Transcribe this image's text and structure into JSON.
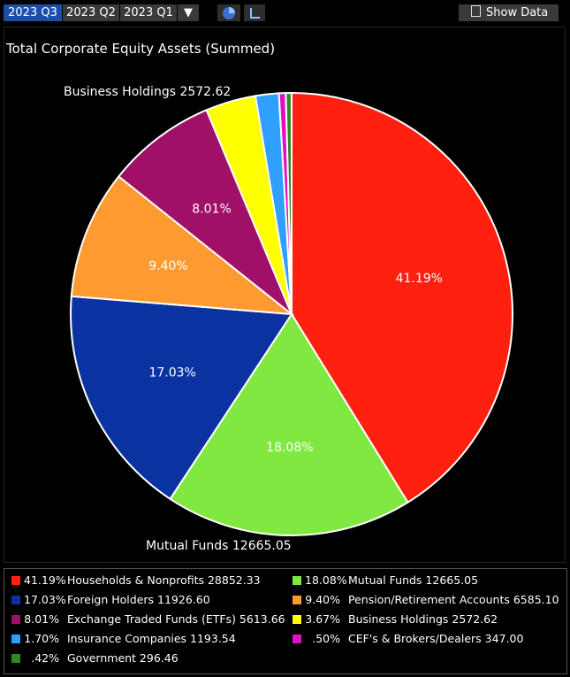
{
  "toolbar": {
    "tabs": [
      "2023 Q3",
      "2023 Q2",
      "2023 Q1"
    ],
    "dropdown_glyph": "▼",
    "show_data_label": "Show Data",
    "pie_icon": "pie-chart-icon",
    "axis_icon": "axis-chart-icon"
  },
  "chart_data": {
    "type": "pie",
    "title": "Total Corporate Equity Assets (Summed)",
    "slices": [
      {
        "label": "Households & Nonprofits",
        "value": 28852.33,
        "percent": 41.19,
        "pct_text": "41.19%",
        "color": "#ff2010"
      },
      {
        "label": "Mutual Funds",
        "value": 12665.05,
        "percent": 18.08,
        "pct_text": "18.08%",
        "color": "#80e840"
      },
      {
        "label": "Foreign Holders",
        "value": 11926.6,
        "percent": 17.03,
        "pct_text": "17.03%",
        "color": "#0a32a0"
      },
      {
        "label": "Pension/Retirement Accounts",
        "value": 6585.1,
        "percent": 9.4,
        "pct_text": "9.40%",
        "color": "#ff9a30"
      },
      {
        "label": "Exchange Traded Funds (ETFs)",
        "value": 5613.66,
        "percent": 8.01,
        "pct_text": "8.01%",
        "color": "#a01068"
      },
      {
        "label": "Business Holdings",
        "value": 2572.62,
        "percent": 3.67,
        "pct_text": "3.67%",
        "color": "#ffff00"
      },
      {
        "label": "Insurance Companies",
        "value": 1193.54,
        "percent": 1.7,
        "pct_text": "1.70%",
        "color": "#30a0ff"
      },
      {
        "label": "CEF's & Brokers/Dealers",
        "value": 347.0,
        "percent": 0.5,
        "pct_text": ".50%",
        "color": "#e010c0"
      },
      {
        "label": "Government",
        "value": 296.46,
        "percent": 0.42,
        "pct_text": ".42%",
        "color": "#2e8a1e"
      }
    ],
    "slice_labels_shown": [
      "41.19%",
      "18.08%",
      "17.03%",
      "9.40%",
      "8.01%"
    ],
    "callouts": [
      {
        "text": "Business Holdings 2572.62"
      },
      {
        "text": "Mutual Funds 12665.05"
      }
    ],
    "legend": [
      {
        "pct": "41.19%",
        "text": "Households & Nonprofits 28852.33",
        "color": "#ff2010"
      },
      {
        "pct": "18.08%",
        "text": "Mutual Funds 12665.05",
        "color": "#80e840"
      },
      {
        "pct": "17.03%",
        "text": "Foreign Holders 11926.60",
        "color": "#0a32a0"
      },
      {
        "pct": "9.40%",
        "text": "Pension/Retirement Accounts 6585.10",
        "color": "#ff9a30"
      },
      {
        "pct": "8.01%",
        "text": "Exchange Traded Funds (ETFs) 5613.66",
        "color": "#a01068"
      },
      {
        "pct": "3.67%",
        "text": "Business Holdings 2572.62",
        "color": "#ffff00"
      },
      {
        "pct": "1.70%",
        "text": "Insurance Companies 1193.54",
        "color": "#30a0ff"
      },
      {
        "pct": ".50%",
        "text": "CEF's & Brokers/Dealers 347.00",
        "color": "#e010c0"
      },
      {
        "pct": ".42%",
        "text": "Government 296.46",
        "color": "#2e8a1e"
      }
    ],
    "legend_placement": "bottom"
  }
}
